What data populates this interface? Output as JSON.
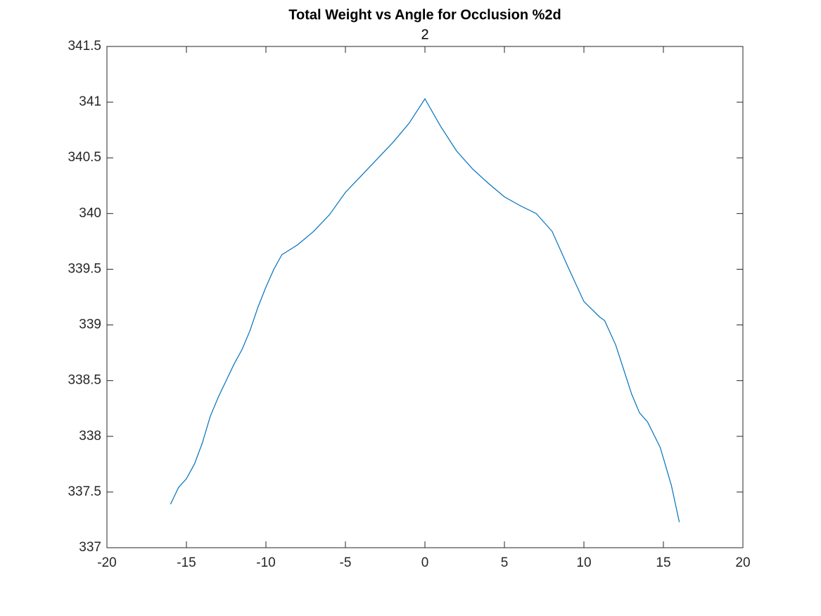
{
  "chart_data": {
    "type": "line",
    "title": "Total Weight vs Angle for Occlusion %2d",
    "subtitle": "2",
    "x": [
      -16,
      -15.5,
      -15,
      -14.5,
      -14,
      -13.5,
      -13,
      -12.5,
      -12,
      -11.5,
      -11,
      -10.5,
      -10,
      -9.5,
      -9,
      -8,
      -7,
      -6,
      -5,
      -4,
      -3,
      -2,
      -1,
      0,
      1,
      2,
      3,
      4,
      5,
      6,
      7,
      8,
      9,
      10,
      11,
      11.3,
      12,
      13,
      13.5,
      14,
      14.8,
      15.5,
      16
    ],
    "series": [
      {
        "color": "#0072bd",
        "values": [
          337.39,
          337.54,
          337.62,
          337.75,
          337.94,
          338.18,
          338.35,
          338.5,
          338.65,
          338.78,
          338.95,
          339.16,
          339.34,
          339.5,
          339.63,
          339.72,
          339.84,
          339.99,
          340.19,
          340.34,
          340.49,
          340.64,
          340.81,
          341.03,
          340.78,
          340.56,
          340.4,
          340.27,
          340.15,
          340.07,
          340.0,
          339.84,
          339.52,
          339.21,
          339.07,
          339.04,
          338.82,
          338.38,
          338.21,
          338.13,
          337.9,
          337.56,
          337.23
        ]
      }
    ],
    "xlim": [
      -20,
      20
    ],
    "xticks": [
      -20,
      -15,
      -10,
      -5,
      0,
      5,
      10,
      15,
      20
    ],
    "ylim": [
      337,
      341.5
    ],
    "yticks": [
      337,
      337.5,
      338,
      338.5,
      339,
      339.5,
      340,
      340.5,
      341,
      341.5
    ]
  }
}
